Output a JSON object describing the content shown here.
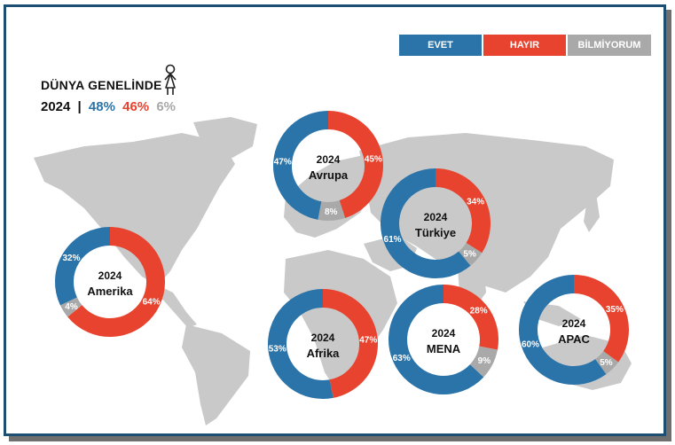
{
  "legend": {
    "evet": "EVET",
    "hayir": "HAYIR",
    "bilmiyorum": "BİLMİYORUM"
  },
  "colors": {
    "evet": "#2a74aa",
    "hayir": "#e8432f",
    "bilmiyorum": "#a9a9a9",
    "frame": "#1d4f73",
    "map": "#c9c9c9"
  },
  "summary": {
    "title": "DÜNYA GENELİNDE",
    "year": "2024",
    "separator": "|",
    "evet": "48%",
    "hayir": "46%",
    "bilmiyorum": "6%"
  },
  "chart_data": {
    "type": "pie",
    "variant": "donut",
    "series_names": [
      "EVET",
      "HAYIR",
      "BİLMİYORUM"
    ],
    "regions": [
      {
        "name": "Avrupa",
        "year": "2024",
        "evet": 47,
        "hayir": 45,
        "bilmiyorum": 8
      },
      {
        "name": "Türkiye",
        "year": "2024",
        "evet": 61,
        "hayir": 34,
        "bilmiyorum": 5
      },
      {
        "name": "Amerika",
        "year": "2024",
        "evet": 32,
        "hayir": 64,
        "bilmiyorum": 4
      },
      {
        "name": "Afrika",
        "year": "2024",
        "evet": 53,
        "hayir": 47,
        "bilmiyorum": 0
      },
      {
        "name": "MENA",
        "year": "2024",
        "evet": 63,
        "hayir": 28,
        "bilmiyorum": 9
      },
      {
        "name": "APAC",
        "year": "2024",
        "evet": 60,
        "hayir": 35,
        "bilmiyorum": 5
      }
    ]
  }
}
